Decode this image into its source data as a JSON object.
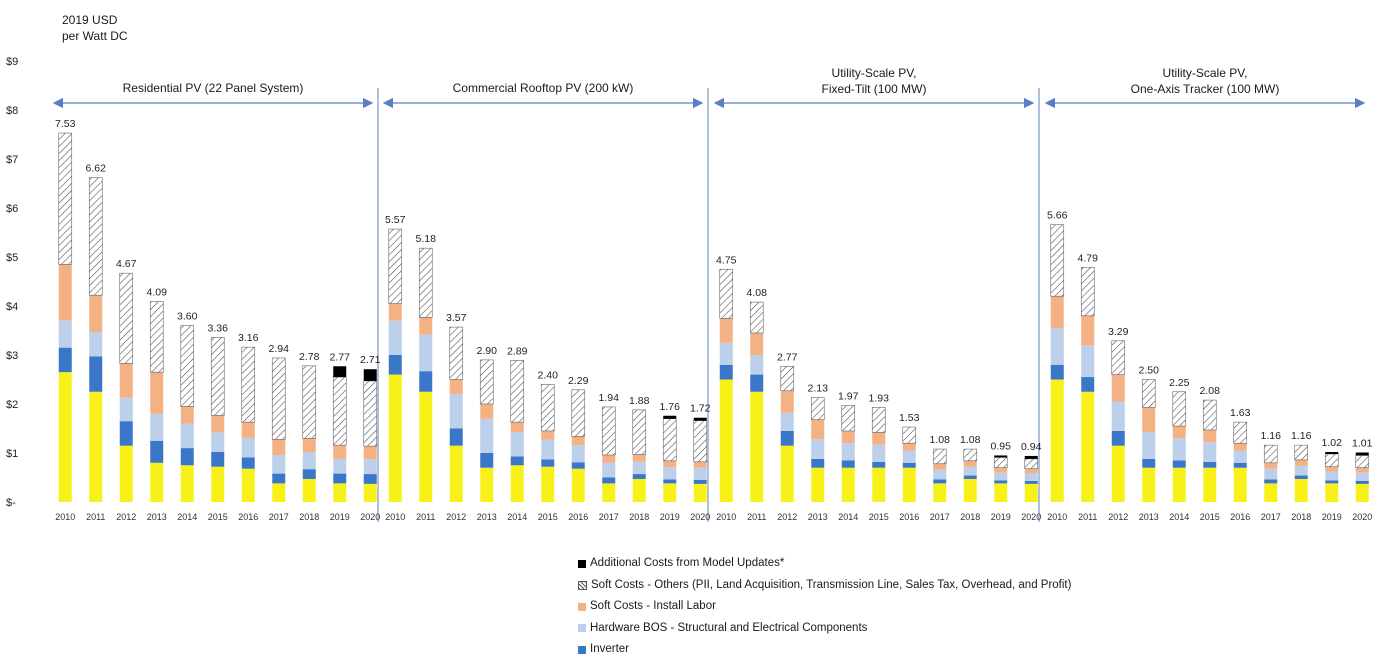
{
  "unit_label": {
    "line1": "2019 USD",
    "line2": "per Watt DC"
  },
  "colors": {
    "module": "#f7f019",
    "inverter": "#3a77c9",
    "hardware_bos": "#bcd0ec",
    "install_labor": "#f4b184",
    "soft_others_stroke": "#555555",
    "additional": "#000000",
    "divider": "#7a96c8",
    "arrow": "#5b7fc7"
  },
  "legend": [
    {
      "key": "additional",
      "label": "Additional Costs from Model Updates*"
    },
    {
      "key": "soft_others",
      "label": "Soft Costs - Others (PII, Land Acquisition, Transmission Line, Sales Tax, Overhead, and Profit)"
    },
    {
      "key": "install_labor",
      "label": "Soft Costs - Install Labor"
    },
    {
      "key": "hardware_bos",
      "label": "Hardware BOS - Structural and Electrical Components"
    },
    {
      "key": "inverter",
      "label": "Inverter"
    }
  ],
  "chart_data": {
    "type": "bar",
    "stacked": true,
    "ylabel": "2019 USD per Watt DC",
    "ylim": [
      0,
      9
    ],
    "yticks": [
      "$-",
      "$1",
      "$2",
      "$3",
      "$4",
      "$5",
      "$6",
      "$7",
      "$8",
      "$9"
    ],
    "components": [
      "module",
      "inverter",
      "hardware_bos",
      "install_labor",
      "soft_others",
      "additional"
    ],
    "groups": [
      {
        "title_lines": [
          "Residential PV (22 Panel System)"
        ],
        "categories": [
          "2010",
          "2011",
          "2012",
          "2013",
          "2014",
          "2015",
          "2016",
          "2017",
          "2018",
          "2019",
          "2020"
        ],
        "totals": [
          7.53,
          6.62,
          4.67,
          4.09,
          3.6,
          3.36,
          3.16,
          2.94,
          2.78,
          2.77,
          2.71
        ],
        "module": [
          2.65,
          2.25,
          1.15,
          0.8,
          0.75,
          0.72,
          0.68,
          0.38,
          0.47,
          0.38,
          0.37
        ],
        "inverter": [
          0.5,
          0.72,
          0.5,
          0.45,
          0.35,
          0.3,
          0.23,
          0.2,
          0.2,
          0.2,
          0.2
        ],
        "hardware_bos": [
          0.55,
          0.5,
          0.48,
          0.55,
          0.5,
          0.4,
          0.4,
          0.38,
          0.35,
          0.3,
          0.3
        ],
        "install_labor": [
          1.15,
          0.75,
          0.7,
          0.85,
          0.35,
          0.35,
          0.32,
          0.32,
          0.28,
          0.28,
          0.27
        ],
        "soft_others": [
          2.68,
          2.4,
          1.84,
          1.44,
          1.65,
          1.59,
          1.53,
          1.66,
          1.48,
          1.39,
          1.33
        ],
        "additional": [
          0,
          0,
          0,
          0,
          0,
          0,
          0,
          0,
          0,
          0.22,
          0.24
        ]
      },
      {
        "title_lines": [
          "Commercial Rooftop PV (200 kW)"
        ],
        "categories": [
          "2010",
          "2011",
          "2012",
          "2013",
          "2014",
          "2015",
          "2016",
          "2017",
          "2018",
          "2019",
          "2020"
        ],
        "totals": [
          5.57,
          5.18,
          3.57,
          2.9,
          2.89,
          2.4,
          2.29,
          1.94,
          1.88,
          1.76,
          1.72
        ],
        "module": [
          2.6,
          2.25,
          1.15,
          0.7,
          0.75,
          0.72,
          0.68,
          0.38,
          0.47,
          0.38,
          0.37
        ],
        "inverter": [
          0.4,
          0.42,
          0.35,
          0.3,
          0.18,
          0.15,
          0.13,
          0.12,
          0.1,
          0.08,
          0.08
        ],
        "hardware_bos": [
          0.7,
          0.75,
          0.7,
          0.7,
          0.5,
          0.4,
          0.35,
          0.3,
          0.25,
          0.25,
          0.25
        ],
        "install_labor": [
          0.35,
          0.35,
          0.3,
          0.3,
          0.2,
          0.18,
          0.18,
          0.16,
          0.15,
          0.13,
          0.12
        ],
        "soft_others": [
          1.52,
          1.41,
          1.07,
          0.9,
          1.26,
          0.95,
          0.95,
          0.98,
          0.91,
          0.86,
          0.84
        ],
        "additional": [
          0,
          0,
          0,
          0,
          0,
          0,
          0,
          0,
          0,
          0.06,
          0.06
        ]
      },
      {
        "title_lines": [
          "Utility-Scale PV,",
          "Fixed-Tilt (100 MW)"
        ],
        "categories": [
          "2010",
          "2011",
          "2012",
          "2013",
          "2014",
          "2015",
          "2016",
          "2017",
          "2018",
          "2019",
          "2020"
        ],
        "totals": [
          4.75,
          4.08,
          2.77,
          2.13,
          1.97,
          1.93,
          1.53,
          1.08,
          1.08,
          0.95,
          0.94
        ],
        "module": [
          2.5,
          2.25,
          1.15,
          0.7,
          0.7,
          0.7,
          0.7,
          0.38,
          0.47,
          0.38,
          0.37
        ],
        "inverter": [
          0.3,
          0.35,
          0.3,
          0.18,
          0.15,
          0.12,
          0.1,
          0.08,
          0.07,
          0.06,
          0.06
        ],
        "hardware_bos": [
          0.45,
          0.4,
          0.37,
          0.4,
          0.35,
          0.35,
          0.25,
          0.2,
          0.18,
          0.16,
          0.15
        ],
        "install_labor": [
          0.5,
          0.45,
          0.45,
          0.4,
          0.25,
          0.25,
          0.15,
          0.12,
          0.12,
          0.1,
          0.1
        ],
        "soft_others": [
          1.0,
          0.63,
          0.5,
          0.45,
          0.52,
          0.51,
          0.33,
          0.3,
          0.24,
          0.21,
          0.2
        ],
        "additional": [
          0,
          0,
          0,
          0,
          0,
          0,
          0,
          0,
          0,
          0.04,
          0.06
        ]
      },
      {
        "title_lines": [
          "Utility-Scale PV,",
          "One-Axis Tracker (100 MW)"
        ],
        "categories": [
          "2010",
          "2011",
          "2012",
          "2013",
          "2014",
          "2015",
          "2016",
          "2017",
          "2018",
          "2019",
          "2020"
        ],
        "totals": [
          5.66,
          4.79,
          3.29,
          2.5,
          2.25,
          2.08,
          1.63,
          1.16,
          1.16,
          1.02,
          1.01
        ],
        "module": [
          2.5,
          2.25,
          1.15,
          0.7,
          0.7,
          0.7,
          0.7,
          0.38,
          0.47,
          0.38,
          0.37
        ],
        "inverter": [
          0.3,
          0.3,
          0.3,
          0.18,
          0.15,
          0.12,
          0.1,
          0.08,
          0.07,
          0.06,
          0.06
        ],
        "hardware_bos": [
          0.75,
          0.65,
          0.6,
          0.55,
          0.45,
          0.4,
          0.25,
          0.22,
          0.2,
          0.18,
          0.17
        ],
        "install_labor": [
          0.65,
          0.6,
          0.55,
          0.5,
          0.25,
          0.25,
          0.15,
          0.12,
          0.12,
          0.1,
          0.1
        ],
        "soft_others": [
          1.46,
          0.99,
          0.69,
          0.57,
          0.7,
          0.61,
          0.43,
          0.36,
          0.3,
          0.26,
          0.25
        ],
        "additional": [
          0,
          0,
          0,
          0,
          0,
          0,
          0,
          0,
          0,
          0.04,
          0.06
        ]
      }
    ]
  }
}
